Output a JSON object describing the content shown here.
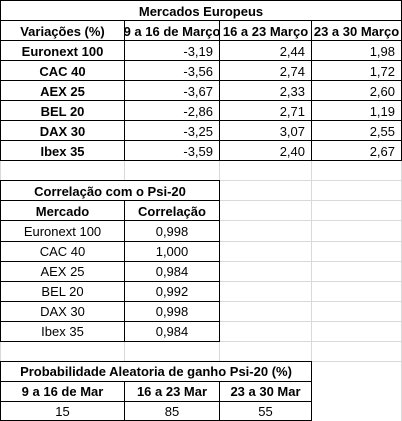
{
  "european_markets": {
    "title": "Mercados Europeus",
    "headers": [
      "Variações (%)",
      "9 a 16 de Março",
      "16 a 23 Março",
      "23 a 30 Março"
    ],
    "rows": [
      {
        "market": "Euronext 100",
        "v1": "-3,19",
        "v2": "2,44",
        "v3": "1,98"
      },
      {
        "market": "CAC 40",
        "v1": "-3,56",
        "v2": "2,74",
        "v3": "1,72"
      },
      {
        "market": "AEX 25",
        "v1": "-3,67",
        "v2": "2,33",
        "v3": "2,60"
      },
      {
        "market": "BEL 20",
        "v1": "-2,86",
        "v2": "2,71",
        "v3": "1,19"
      },
      {
        "market": "DAX 30",
        "v1": "-3,25",
        "v2": "3,07",
        "v3": "2,55"
      },
      {
        "market": "Ibex 35",
        "v1": "-3,59",
        "v2": "2,40",
        "v3": "2,67"
      }
    ]
  },
  "correlation": {
    "title": "Correlação com o Psi-20",
    "headers": [
      "Mercado",
      "Correlação"
    ],
    "rows": [
      {
        "market": "Euronext 100",
        "value": "0,998"
      },
      {
        "market": "CAC 40",
        "value": "1,000"
      },
      {
        "market": "AEX 25",
        "value": "0,984"
      },
      {
        "market": "BEL 20",
        "value": "0,992"
      },
      {
        "market": "DAX 30",
        "value": "0,998"
      },
      {
        "market": "Ibex 35",
        "value": "0,984"
      }
    ]
  },
  "probability": {
    "title": "Probabilidade Aleatoria de ganho Psi-20 (%)",
    "headers": [
      "9 a 16 de Mar",
      "16 a 23 Mar",
      "23 a 30 Mar"
    ],
    "values": [
      "15",
      "85",
      "55"
    ]
  }
}
